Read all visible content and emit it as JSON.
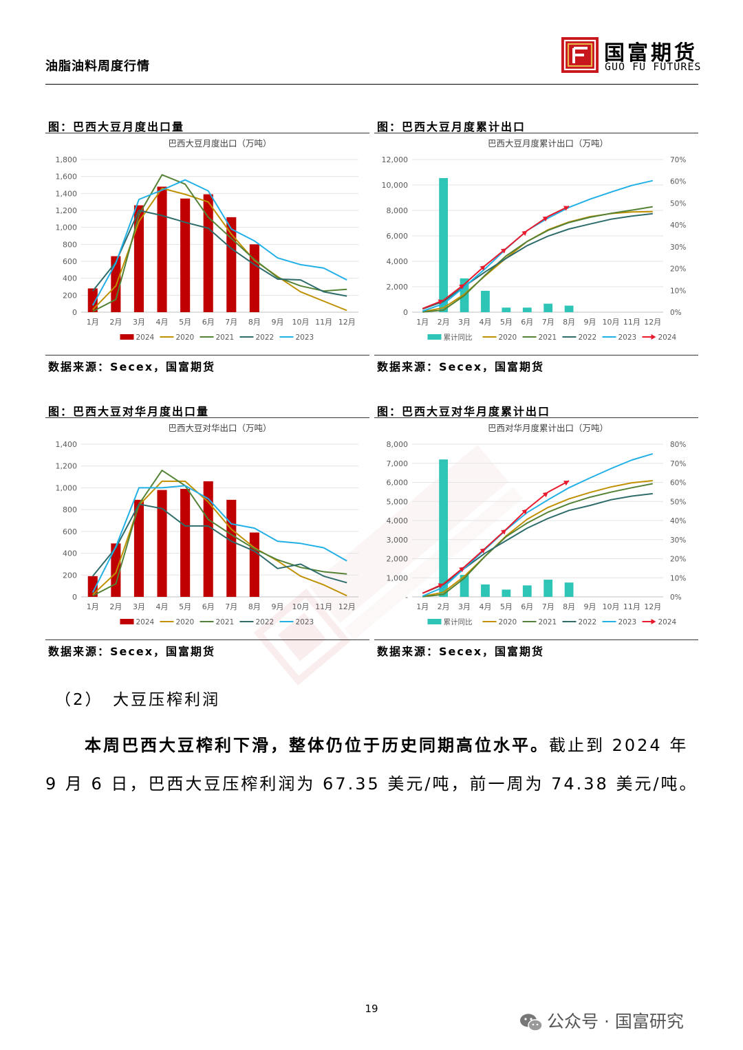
{
  "header": {
    "title": "油脂油料周度行情",
    "logo_cn": "国富期货",
    "logo_en": "GUO  FU  FUTURES"
  },
  "panels": [
    {
      "title": "图：巴西大豆月度出口量",
      "source": "数据来源：Secex，国富期货",
      "chart_title": "巴西大豆月度出口（万吨）"
    },
    {
      "title": "图：巴西大豆月度累计出口",
      "source": "数据来源：Secex，国富期货",
      "chart_title": "巴西大豆月度累计出口（万吨）"
    },
    {
      "title": "图：巴西大豆对华月度出口量",
      "source": "数据来源：Secex，国富期货",
      "chart_title": "巴西大豆对华出口（万吨）"
    },
    {
      "title": "图：巴西大豆对华月度累计出口",
      "source": "数据来源：Secex，国富期货",
      "chart_title": "巴西对华月度累计出口（万吨）"
    }
  ],
  "section": {
    "heading": "（2）　大豆压榨利润"
  },
  "paragraph": {
    "bold": "本周巴西大豆榨利下滑，整体仍位于历史同期高位水平。",
    "rest": "截止到 2024 年 9 月 6 日，巴西大豆压榨利润为 67.35 美元/吨，前一周为 74.38 美元/吨。"
  },
  "footer": {
    "page": "19",
    "wechat": "公众号 · 国富研究"
  },
  "colors": {
    "bar2024": "#c00000",
    "y2020": "#bf9000",
    "y2021": "#548235",
    "y2022": "#2e6b6b",
    "y2023": "#21b0e6",
    "arrow2024": "#e8192c",
    "yoy": "#2ec4b6"
  },
  "chart_data": [
    {
      "type": "bar",
      "title": "巴西大豆月度出口（万吨）",
      "categories": [
        "1月",
        "2月",
        "3月",
        "4月",
        "5月",
        "6月",
        "7月",
        "8月",
        "9月",
        "10月",
        "11月",
        "12月"
      ],
      "ylim": [
        0,
        1800
      ],
      "yticks": [
        "0",
        "200",
        "400",
        "600",
        "800",
        "1,000",
        "1,200",
        "1,400",
        "1,600",
        "1,800"
      ],
      "legend": [
        "2024",
        "2020",
        "2021",
        "2022",
        "2023"
      ],
      "series": [
        {
          "name": "2024",
          "kind": "bar",
          "values": [
            280,
            660,
            1260,
            1480,
            1340,
            1390,
            1120,
            800,
            null,
            null,
            null,
            null
          ]
        },
        {
          "name": "2020",
          "kind": "line",
          "values": [
            30,
            310,
            1070,
            1460,
            1390,
            1300,
            920,
            610,
            420,
            240,
            130,
            20
          ]
        },
        {
          "name": "2021",
          "kind": "line",
          "values": [
            10,
            150,
            1150,
            1620,
            1510,
            1120,
            870,
            620,
            410,
            310,
            250,
            270
          ]
        },
        {
          "name": "2022",
          "kind": "line",
          "values": [
            250,
            590,
            1200,
            1140,
            1060,
            990,
            750,
            560,
            390,
            380,
            240,
            190
          ]
        },
        {
          "name": "2023",
          "kind": "line",
          "values": [
            80,
            580,
            1330,
            1440,
            1560,
            1430,
            980,
            840,
            640,
            560,
            520,
            380
          ]
        }
      ]
    },
    {
      "type": "bar",
      "title": "巴西大豆月度累计出口（万吨）",
      "categories": [
        "1月",
        "2月",
        "3月",
        "4月",
        "5月",
        "6月",
        "7月",
        "8月",
        "9月",
        "10月",
        "11月",
        "12月"
      ],
      "ylim": [
        0,
        12000
      ],
      "yticks": [
        "0",
        "2,000",
        "4,000",
        "6,000",
        "8,000",
        "10,000",
        "12,000"
      ],
      "y2lim": [
        0,
        70
      ],
      "y2ticks": [
        "0%",
        "10%",
        "20%",
        "30%",
        "40%",
        "50%",
        "60%",
        "70%"
      ],
      "legend": [
        "累计同比",
        "2020",
        "2021",
        "2022",
        "2023",
        "2024"
      ],
      "series": [
        {
          "name": "累计同比",
          "kind": "bar",
          "axis": "right",
          "values": [
            null,
            61.5,
            15.5,
            9.8,
            2.1,
            2.1,
            3.9,
            3.0,
            null,
            null,
            null,
            null
          ]
        },
        {
          "name": "2020",
          "kind": "line",
          "values": [
            30,
            340,
            1410,
            2870,
            4260,
            5560,
            6480,
            7090,
            7510,
            7750,
            7880,
            7900
          ]
        },
        {
          "name": "2021",
          "kind": "line",
          "values": [
            10,
            160,
            1310,
            2930,
            4440,
            5560,
            6430,
            7050,
            7460,
            7770,
            8020,
            8290
          ]
        },
        {
          "name": "2022",
          "kind": "line",
          "values": [
            250,
            840,
            2040,
            3180,
            4240,
            5230,
            5980,
            6540,
            6930,
            7310,
            7550,
            7740
          ]
        },
        {
          "name": "2023",
          "kind": "line",
          "values": [
            80,
            660,
            1990,
            3430,
            4990,
            6420,
            7400,
            8240,
            8880,
            9440,
            9960,
            10340
          ]
        },
        {
          "name": "2024",
          "kind": "arrow",
          "values": [
            280,
            940,
            2200,
            3680,
            5020,
            6410,
            7530,
            8330,
            null,
            null,
            null,
            null
          ]
        }
      ]
    },
    {
      "type": "bar",
      "title": "巴西大豆对华出口（万吨）",
      "categories": [
        "1月",
        "2月",
        "3月",
        "4月",
        "5月",
        "6月",
        "7月",
        "8月",
        "9月",
        "10月",
        "11月",
        "12月"
      ],
      "ylim": [
        0,
        1400
      ],
      "yticks": [
        "0",
        "200",
        "400",
        "600",
        "800",
        "1,000",
        "1,200",
        "1,400"
      ],
      "legend": [
        "2024",
        "2020",
        "2021",
        "2022",
        "2023"
      ],
      "series": [
        {
          "name": "2024",
          "kind": "bar",
          "values": [
            190,
            490,
            890,
            980,
            990,
            1060,
            890,
            590,
            null,
            null,
            null,
            null
          ]
        },
        {
          "name": "2020",
          "kind": "line",
          "values": [
            20,
            220,
            840,
            1060,
            1060,
            870,
            620,
            450,
            330,
            190,
            110,
            10
          ]
        },
        {
          "name": "2021",
          "kind": "line",
          "values": [
            10,
            120,
            850,
            1160,
            1020,
            710,
            570,
            440,
            340,
            270,
            230,
            210
          ]
        },
        {
          "name": "2022",
          "kind": "line",
          "values": [
            190,
            450,
            850,
            810,
            650,
            650,
            510,
            420,
            260,
            300,
            190,
            130
          ]
        },
        {
          "name": "2023",
          "kind": "line",
          "values": [
            40,
            460,
            1000,
            1000,
            1020,
            900,
            670,
            630,
            510,
            490,
            450,
            330
          ]
        }
      ]
    },
    {
      "type": "bar",
      "title": "巴西对华月度累计出口（万吨）",
      "categories": [
        "1月",
        "2月",
        "3月",
        "4月",
        "5月",
        "6月",
        "7月",
        "8月",
        "9月",
        "10月",
        "11月",
        "12月"
      ],
      "ylim": [
        0,
        8000
      ],
      "yticks": [
        "-",
        "1,000",
        "2,000",
        "3,000",
        "4,000",
        "5,000",
        "6,000",
        "7,000",
        "8,000"
      ],
      "y2lim": [
        0,
        80
      ],
      "y2ticks": [
        "0%",
        "10%",
        "20%",
        "30%",
        "40%",
        "50%",
        "60%",
        "70%",
        "80%"
      ],
      "legend": [
        "累计同比",
        "2020",
        "2021",
        "2022",
        "2023",
        "2024"
      ],
      "series": [
        {
          "name": "累计同比",
          "kind": "bar",
          "axis": "right",
          "values": [
            null,
            72,
            11.5,
            6.5,
            3.8,
            6.0,
            9.0,
            7.5,
            null,
            null,
            null,
            null
          ]
        },
        {
          "name": "2020",
          "kind": "line",
          "values": [
            20,
            240,
            1080,
            2140,
            3200,
            4070,
            4690,
            5140,
            5470,
            5760,
            5980,
            6090
          ]
        },
        {
          "name": "2021",
          "kind": "line",
          "values": [
            10,
            130,
            980,
            2140,
            3160,
            3870,
            4440,
            4880,
            5220,
            5490,
            5720,
            5930
          ]
        },
        {
          "name": "2022",
          "kind": "line",
          "values": [
            190,
            640,
            1490,
            2300,
            2950,
            3600,
            4110,
            4530,
            4790,
            5090,
            5280,
            5410
          ]
        },
        {
          "name": "2023",
          "kind": "line",
          "values": [
            40,
            500,
            1500,
            2500,
            3520,
            4420,
            5090,
            5720,
            6230,
            6720,
            7170,
            7500
          ]
        },
        {
          "name": "2024",
          "kind": "arrow",
          "values": [
            190,
            680,
            1570,
            2550,
            3540,
            4600,
            5490,
            6080,
            null,
            null,
            null,
            null
          ]
        }
      ]
    }
  ]
}
